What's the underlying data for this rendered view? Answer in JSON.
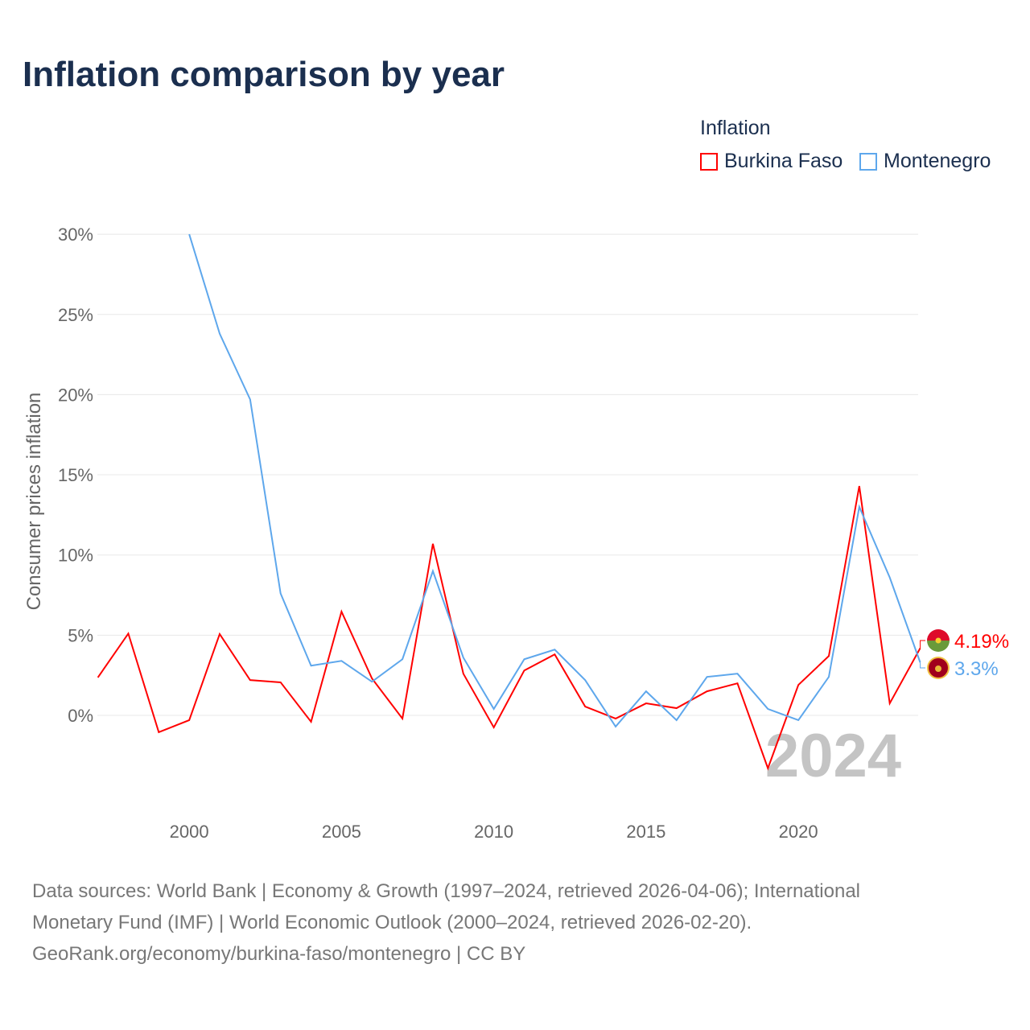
{
  "title": "Inflation comparison by year",
  "legend": {
    "title": "Inflation",
    "items": [
      {
        "name": "Burkina Faso",
        "color": "#ff0000"
      },
      {
        "name": "Montenegro",
        "color": "#5ea7ec"
      }
    ]
  },
  "year_watermark": "2024",
  "footer": {
    "line1": "Data sources: World Bank | Economy & Growth (1997–2024, retrieved 2026-04-06); International",
    "line2": "Monetary Fund (IMF) | World Economic Outlook (2000–2024, retrieved 2026-02-20).",
    "line3": "GeoRank.org/economy/burkina-faso/montenegro | CC BY"
  },
  "chart_data": {
    "type": "line",
    "title": "Inflation comparison by year",
    "xlabel": "",
    "ylabel": "Consumer prices inflation",
    "xlim": [
      1997,
      2024
    ],
    "ylim": [
      -5.6,
      30
    ],
    "grid": true,
    "legend_placement": "top-right",
    "x_ticks": [
      2000,
      2005,
      2010,
      2015,
      2020
    ],
    "y_ticks": [
      0,
      5,
      10,
      15,
      20,
      25,
      30
    ],
    "y_tick_labels": [
      "0%",
      "5%",
      "10%",
      "15%",
      "20%",
      "25%",
      "30%"
    ],
    "series": [
      {
        "name": "Burkina Faso",
        "color": "#ff0000",
        "end_label": "4.19%",
        "x": [
          1997,
          1998,
          1999,
          2000,
          2001,
          2002,
          2003,
          2004,
          2005,
          2006,
          2007,
          2008,
          2009,
          2010,
          2011,
          2012,
          2013,
          2014,
          2015,
          2016,
          2017,
          2018,
          2019,
          2020,
          2021,
          2022,
          2023,
          2024
        ],
        "values": [
          2.36,
          5.1,
          -1.05,
          -0.3,
          5.07,
          2.2,
          2.06,
          -0.4,
          6.47,
          2.3,
          -0.2,
          10.7,
          2.6,
          -0.75,
          2.8,
          3.8,
          0.55,
          -0.2,
          0.75,
          0.45,
          1.5,
          2.0,
          -3.3,
          1.9,
          3.7,
          14.3,
          0.75,
          4.19
        ]
      },
      {
        "name": "Montenegro",
        "color": "#5ea7ec",
        "end_label": "3.3%",
        "x": [
          2000,
          2001,
          2002,
          2003,
          2004,
          2005,
          2006,
          2007,
          2008,
          2009,
          2010,
          2011,
          2012,
          2013,
          2014,
          2015,
          2016,
          2017,
          2018,
          2019,
          2020,
          2021,
          2022,
          2023,
          2024
        ],
        "values": [
          30,
          23.8,
          19.7,
          7.6,
          3.1,
          3.4,
          2.1,
          3.5,
          9.0,
          3.6,
          0.4,
          3.5,
          4.1,
          2.2,
          -0.7,
          1.5,
          -0.3,
          2.4,
          2.6,
          0.4,
          -0.3,
          2.4,
          13.0,
          8.6,
          3.3
        ]
      }
    ]
  }
}
